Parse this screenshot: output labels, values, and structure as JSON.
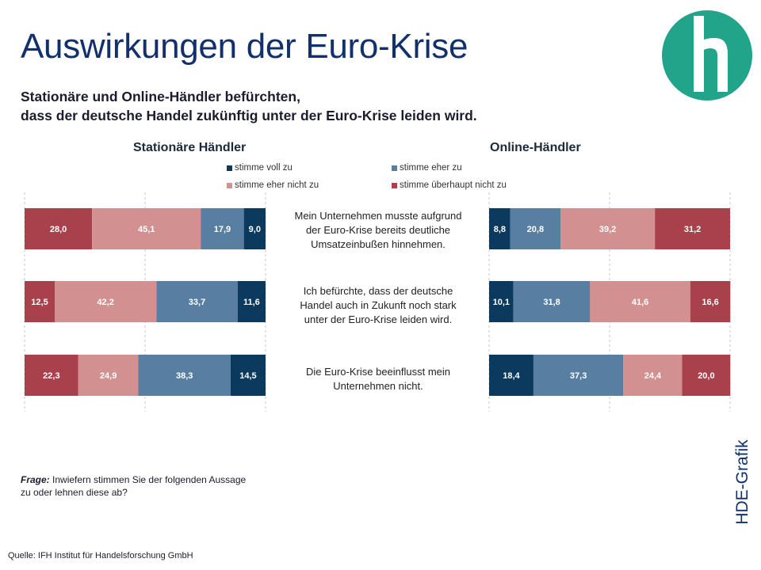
{
  "header": {
    "title": "Auswirkungen der Euro-Krise",
    "subtitle_line1": "Stationäre und Online-Händler  befürchten,",
    "subtitle_line2": "dass der deutsche Handel zukünftig unter der Euro-Krise leiden wird."
  },
  "logo": {
    "icon": "hde-logo-icon",
    "color": "#22a48a"
  },
  "side_label": "HDE-Grafik",
  "question": {
    "label": "Frage:",
    "text": " Inwiefern  stimmen Sie der folgenden Aussage zu oder lehnen diese ab?"
  },
  "source": "Quelle: IFH Institut für Handelsforschung GmbH",
  "colors": {
    "voll_zu": "#0b3a5e",
    "eher_zu": "#587fa2",
    "eher_nicht_zu": "#d29090",
    "ueberhaupt_nicht_zu": "#a9414d"
  },
  "chart_data": {
    "type": "bar",
    "orientation": "horizontal-stacked",
    "legend": {
      "voll_zu": "stimme voll zu",
      "eher_zu": "stimme eher zu",
      "eher_nicht_zu": "stimme eher nicht zu",
      "ueberhaupt_nicht_zu": "stimme überhaupt nicht zu"
    },
    "statements": [
      {
        "lines": [
          "Mein Unternehmen musste aufgrund",
          "der Euro-Krise bereits deutliche",
          "Umsatzeinbußen hinnehmen."
        ]
      },
      {
        "lines": [
          "Ich befürchte, dass der deutsche",
          "Handel auch in Zukunft noch stark",
          "unter der Euro-Krise leiden wird."
        ]
      },
      {
        "lines": [
          "Die Euro-Krise beeinflusst mein",
          "Unternehmen nicht."
        ]
      }
    ],
    "panels": [
      {
        "title": "Stationäre Händler",
        "order": [
          "ueberhaupt_nicht_zu",
          "eher_nicht_zu",
          "eher_zu",
          "voll_zu"
        ],
        "rows": [
          {
            "ueberhaupt_nicht_zu": 28.0,
            "eher_nicht_zu": 45.1,
            "eher_zu": 17.9,
            "voll_zu": 9.0
          },
          {
            "ueberhaupt_nicht_zu": 12.5,
            "eher_nicht_zu": 42.2,
            "eher_zu": 33.7,
            "voll_zu": 11.6
          },
          {
            "ueberhaupt_nicht_zu": 22.3,
            "eher_nicht_zu": 24.9,
            "eher_zu": 38.3,
            "voll_zu": 14.5
          }
        ]
      },
      {
        "title": "Online-Händler",
        "order": [
          "voll_zu",
          "eher_zu",
          "eher_nicht_zu",
          "ueberhaupt_nicht_zu"
        ],
        "rows": [
          {
            "voll_zu": 8.8,
            "eher_zu": 20.8,
            "eher_nicht_zu": 39.2,
            "ueberhaupt_nicht_zu": 31.2
          },
          {
            "voll_zu": 10.1,
            "eher_zu": 31.8,
            "eher_nicht_zu": 41.6,
            "ueberhaupt_nicht_zu": 16.6
          },
          {
            "voll_zu": 18.4,
            "eher_zu": 37.3,
            "eher_nicht_zu": 24.4,
            "ueberhaupt_nicht_zu": 20.0
          }
        ]
      }
    ],
    "xlim": [
      0,
      100
    ],
    "grid": true
  }
}
